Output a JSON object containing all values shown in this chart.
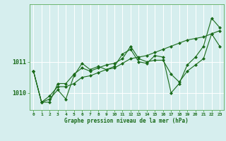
{
  "title": "Graphe pression niveau de la mer (hPa)",
  "background_color": "#d6eeee",
  "grid_color": "#ffffff",
  "line_color": "#1a6b1a",
  "xlim": [
    -0.5,
    23.5
  ],
  "ylim": [
    1009.45,
    1012.85
  ],
  "xtick_labels": [
    "0",
    "1",
    "2",
    "3",
    "4",
    "5",
    "6",
    "7",
    "8",
    "9",
    "10",
    "11",
    "12",
    "13",
    "14",
    "15",
    "16",
    "17",
    "18",
    "19",
    "20",
    "21",
    "22",
    "23"
  ],
  "ytick_values": [
    1010,
    1011
  ],
  "series": [
    [
      1010.7,
      1009.7,
      1009.7,
      1010.3,
      1010.3,
      1010.6,
      1010.8,
      1010.7,
      1010.8,
      1010.9,
      1010.95,
      1011.1,
      1011.5,
      1011.1,
      1011.0,
      1011.05,
      1011.05,
      1010.6,
      1010.35,
      1010.7,
      1010.9,
      1011.1,
      1011.9,
      1011.5
    ],
    [
      1010.7,
      1009.7,
      1009.8,
      1010.1,
      1009.8,
      1010.55,
      1010.95,
      1010.75,
      1010.85,
      1010.75,
      1010.85,
      1011.25,
      1011.4,
      1011.0,
      1010.95,
      1011.2,
      1011.15,
      1010.0,
      1010.3,
      1010.9,
      1011.15,
      1011.5,
      1012.4,
      1012.1
    ],
    [
      1010.7,
      1009.7,
      1009.9,
      1010.2,
      1010.2,
      1010.3,
      1010.5,
      1010.55,
      1010.65,
      1010.75,
      1010.8,
      1010.95,
      1011.1,
      1011.15,
      1011.2,
      1011.3,
      1011.4,
      1011.5,
      1011.6,
      1011.7,
      1011.75,
      1011.8,
      1011.9,
      1012.0
    ]
  ]
}
